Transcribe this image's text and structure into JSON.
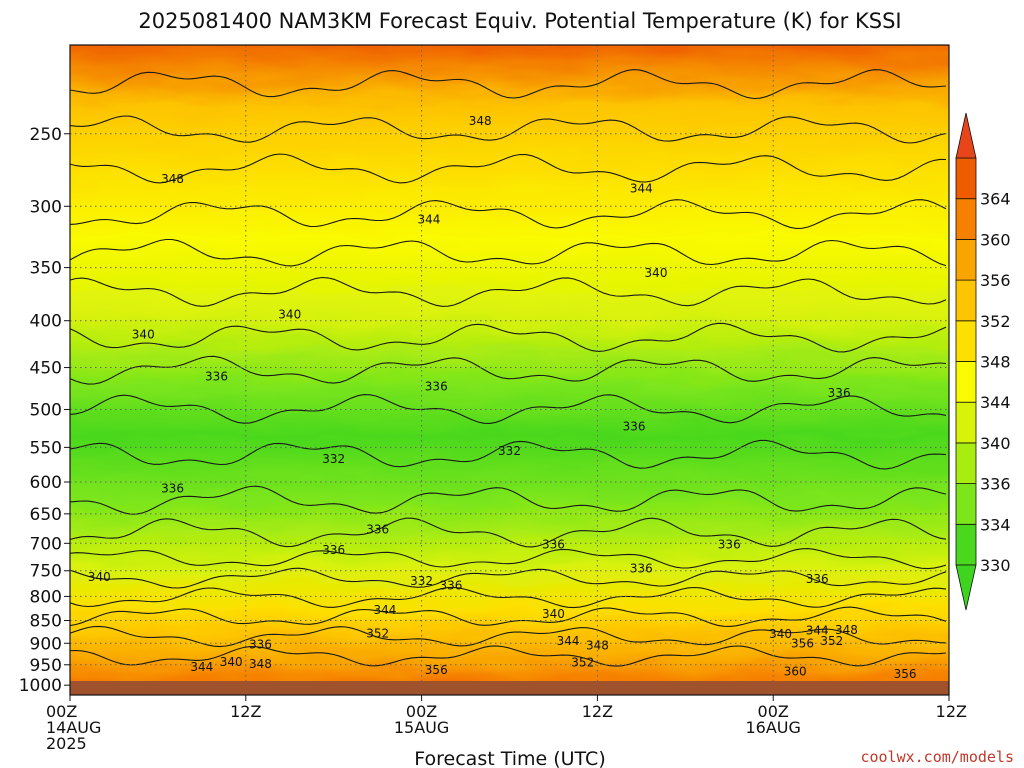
{
  "chart_data": {
    "type": "heatmap",
    "title": "2025081400 NAM3KM Forecast Equiv. Potential Temperature (K) for KSSI",
    "xlabel": "Forecast Time (UTC)",
    "ylabel": "",
    "x_ticks": [
      {
        "hour": 0,
        "lines": [
          "00Z",
          "14AUG",
          "2025"
        ]
      },
      {
        "hour": 12,
        "lines": [
          "12Z"
        ]
      },
      {
        "hour": 24,
        "lines": [
          "00Z",
          "15AUG"
        ]
      },
      {
        "hour": 36,
        "lines": [
          "12Z"
        ]
      },
      {
        "hour": 48,
        "lines": [
          "00Z",
          "16AUG"
        ]
      },
      {
        "hour": 60,
        "lines": [
          "12Z"
        ]
      }
    ],
    "x_range_hours": [
      0,
      60
    ],
    "y_axis": {
      "scale": "log",
      "units": "hPa",
      "range": [
        1025,
        200
      ],
      "ticks": [
        250,
        300,
        350,
        400,
        450,
        500,
        550,
        600,
        650,
        700,
        750,
        800,
        850,
        900,
        950,
        1000
      ]
    },
    "grid": true,
    "colorbar": {
      "labels": [
        "330",
        "334",
        "336",
        "340",
        "344",
        "348",
        "352",
        "356",
        "360",
        "364"
      ],
      "colors": [
        "#4ad81f",
        "#7de61a",
        "#a9ec10",
        "#d8f20a",
        "#fafa00",
        "#fde000",
        "#fdc400",
        "#f9a500",
        "#f68000",
        "#ef5c00"
      ],
      "extend": "both"
    },
    "ground_color": "#a0522d",
    "contour_labels": [
      {
        "text": "348",
        "hour": 28.0,
        "p": 242
      },
      {
        "text": "348",
        "hour": 7.0,
        "p": 280
      },
      {
        "text": "344",
        "hour": 24.5,
        "p": 310
      },
      {
        "text": "344",
        "hour": 39.0,
        "p": 287
      },
      {
        "text": "340",
        "hour": 15.0,
        "p": 394
      },
      {
        "text": "340",
        "hour": 5.0,
        "p": 414
      },
      {
        "text": "340",
        "hour": 40.0,
        "p": 355
      },
      {
        "text": "336",
        "hour": 10.0,
        "p": 460
      },
      {
        "text": "336",
        "hour": 25.0,
        "p": 472
      },
      {
        "text": "336",
        "hour": 52.5,
        "p": 480
      },
      {
        "text": "336",
        "hour": 38.5,
        "p": 522
      },
      {
        "text": "332",
        "hour": 18.0,
        "p": 566
      },
      {
        "text": "332",
        "hour": 30.0,
        "p": 555
      },
      {
        "text": "336",
        "hour": 7.0,
        "p": 610
      },
      {
        "text": "336",
        "hour": 21.0,
        "p": 676
      },
      {
        "text": "336",
        "hour": 18.0,
        "p": 712
      },
      {
        "text": "336",
        "hour": 33.0,
        "p": 702
      },
      {
        "text": "336",
        "hour": 45.0,
        "p": 702
      },
      {
        "text": "336",
        "hour": 39.0,
        "p": 746
      },
      {
        "text": "336",
        "hour": 51.0,
        "p": 766
      },
      {
        "text": "340",
        "hour": 2.0,
        "p": 762
      },
      {
        "text": "332",
        "hour": 24.0,
        "p": 770
      },
      {
        "text": "336",
        "hour": 26.0,
        "p": 778
      },
      {
        "text": "344",
        "hour": 21.5,
        "p": 828
      },
      {
        "text": "340",
        "hour": 33.0,
        "p": 836
      },
      {
        "text": "352",
        "hour": 21.0,
        "p": 878
      },
      {
        "text": "336",
        "hour": 13.0,
        "p": 903
      },
      {
        "text": "344",
        "hour": 34.0,
        "p": 895
      },
      {
        "text": "348",
        "hour": 36.0,
        "p": 905
      },
      {
        "text": "340",
        "hour": 48.5,
        "p": 879
      },
      {
        "text": "344",
        "hour": 51.0,
        "p": 872
      },
      {
        "text": "348",
        "hour": 53.0,
        "p": 870
      },
      {
        "text": "352",
        "hour": 52.0,
        "p": 895
      },
      {
        "text": "356",
        "hour": 50.0,
        "p": 900
      },
      {
        "text": "344",
        "hour": 9.0,
        "p": 955
      },
      {
        "text": "340",
        "hour": 11.0,
        "p": 943
      },
      {
        "text": "348",
        "hour": 13.0,
        "p": 948
      },
      {
        "text": "352",
        "hour": 35.0,
        "p": 945
      },
      {
        "text": "356",
        "hour": 25.0,
        "p": 962
      },
      {
        "text": "360",
        "hour": 49.5,
        "p": 966
      },
      {
        "text": "356",
        "hour": 57.0,
        "p": 972
      }
    ]
  },
  "credit": "coolwx.com/models"
}
